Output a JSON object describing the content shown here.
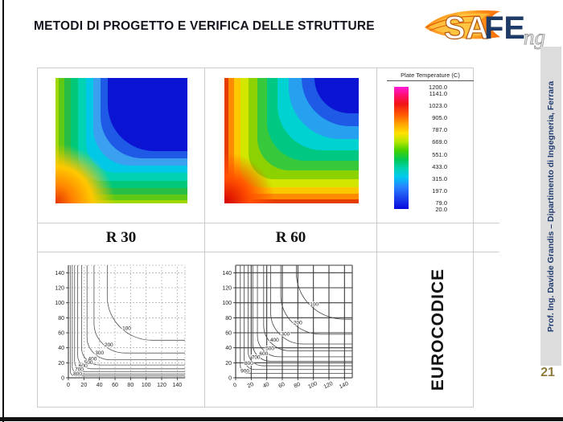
{
  "slide": {
    "title": "METODI DI PROGETTO E VERIFICA DELLE STRUTTURE",
    "page_number": "21",
    "sidebar_text": "Prof. Ing. Davide Grandis – Dipartimento di Ingegneria, Ferrara",
    "logo": {
      "text_sa": "SA",
      "text_fe": "FE",
      "text_ng": "ng"
    }
  },
  "colors": {
    "title_text": "#15151f",
    "logo_navy": "#1e3a66",
    "logo_flame": "#ff7a00",
    "sidebar_bg": "#dcdcdc",
    "sidebar_text": "#1f3a6e",
    "page_number_gold": "#8f7d3f",
    "table_border": "#cccccc"
  },
  "table": {
    "row_labels": [
      "R 30",
      "R 60"
    ],
    "eurocode_label": "EUROCODICE"
  },
  "legend": {
    "title": "Plate Temperature (C)",
    "values": [
      "1200.0",
      "1141.0",
      "1023.0",
      "905.0",
      "787.0",
      "669.0",
      "551.0",
      "433.0",
      "315.0",
      "197.0",
      "79.0",
      "20.0"
    ],
    "value_max": 1200,
    "value_min": 20,
    "gradient_stops": [
      "#ff1ad9 0%",
      "#ff0f6e 7%",
      "#f01414 14%",
      "#ff5a00 23%",
      "#ffa000 30%",
      "#ffe100 38%",
      "#b4e600 45%",
      "#46d200 52%",
      "#00c85a 60%",
      "#00d2b4 67%",
      "#00c8f0 74%",
      "#2882ff 82%",
      "#1e50f0 89%",
      "#0a0adc 100%"
    ]
  },
  "chart_data": [
    {
      "type": "heatmap",
      "name": "R 30 plate temperature map",
      "legend_title": "Plate Temperature (C)",
      "heated_edges": [
        "left",
        "bottom"
      ],
      "bands": [
        {
          "inset": 0,
          "radius": 0,
          "color": "#a0d800"
        },
        {
          "inset": 4,
          "radius": 10,
          "color": "#5fc814"
        },
        {
          "inset": 11,
          "radius": 16,
          "color": "#28be46"
        },
        {
          "inset": 19,
          "radius": 22,
          "color": "#00c878"
        },
        {
          "inset": 28,
          "radius": 30,
          "color": "#00d2b4"
        },
        {
          "inset": 38,
          "radius": 38,
          "color": "#00c8e6"
        },
        {
          "inset": 47,
          "radius": 46,
          "color": "#3ca0f0"
        },
        {
          "inset": 56,
          "radius": 52,
          "color": "#1e5ae6"
        },
        {
          "inset": 65,
          "radius": 58,
          "color": "#0a14d2"
        }
      ],
      "hotspot": {
        "size": 85,
        "stops": [
          "#e63200 0%",
          "#ff8200 18%",
          "#ffc800 38%",
          "rgba(255,220,0,0) 62%"
        ]
      }
    },
    {
      "type": "heatmap",
      "name": "R 60 plate temperature map",
      "legend_title": "Plate Temperature (C)",
      "heated_edges": [
        "left",
        "bottom"
      ],
      "bands": [
        {
          "inset": 0,
          "radius": 0,
          "color": "#e63c00"
        },
        {
          "inset": 5,
          "radius": 10,
          "color": "#ff8c00"
        },
        {
          "inset": 12,
          "radius": 16,
          "color": "#ffc800"
        },
        {
          "inset": 20,
          "radius": 24,
          "color": "#d2e600"
        },
        {
          "inset": 30,
          "radius": 32,
          "color": "#8cd200"
        },
        {
          "inset": 41,
          "radius": 40,
          "color": "#37c83c"
        },
        {
          "inset": 53,
          "radius": 48,
          "color": "#00c882"
        },
        {
          "inset": 66,
          "radius": 56,
          "color": "#00d2d2"
        },
        {
          "inset": 80,
          "radius": 64,
          "color": "#28a0f0"
        },
        {
          "inset": 96,
          "radius": 72,
          "color": "#1e5ae6"
        },
        {
          "inset": 112,
          "radius": 80,
          "color": "#0a14d2"
        }
      ],
      "hotspot": {
        "size": 75,
        "stops": [
          "#d20000 0%",
          "#ff5000 30%",
          "rgba(255,120,0,0) 60%"
        ]
      }
    },
    {
      "type": "line",
      "subtype": "isotherm-contours",
      "name": "Eurocode isotherms R 30",
      "x_range": [
        0,
        150
      ],
      "y_range": [
        0,
        150
      ],
      "ticks": [
        0,
        20,
        40,
        60,
        80,
        100,
        120,
        140
      ],
      "grid": {
        "color": "#9a9a9a",
        "dash": "2,2",
        "width": 0.6
      },
      "contour_color": "#555555",
      "xtick_rotate": 0,
      "contours": [
        {
          "label": "100",
          "d": 50,
          "r": 58,
          "lx": 75,
          "ly": 64
        },
        {
          "label": "200",
          "d": 33,
          "r": 40,
          "lx": 52,
          "ly": 42
        },
        {
          "label": "300",
          "d": 24,
          "r": 30,
          "lx": 40,
          "ly": 31
        },
        {
          "label": "400",
          "d": 17,
          "r": 23,
          "lx": 31,
          "ly": 23
        },
        {
          "label": "500",
          "d": 12,
          "r": 18,
          "lx": 26,
          "ly": 18
        },
        {
          "label": "600",
          "d": 8,
          "r": 14,
          "lx": 19,
          "ly": 14
        },
        {
          "label": "700",
          "d": 5,
          "r": 10,
          "lx": 14,
          "ly": 9
        },
        {
          "label": "800",
          "d": 2.5,
          "r": 6,
          "lx": 12,
          "ly": 3
        }
      ]
    },
    {
      "type": "line",
      "subtype": "isotherm-contours",
      "name": "Eurocode isotherms R 60",
      "x_range": [
        0,
        150
      ],
      "y_range": [
        0,
        150
      ],
      "ticks": [
        0,
        20,
        40,
        60,
        80,
        100,
        120,
        140
      ],
      "grid": {
        "color": "#3c3c3c",
        "dash": "",
        "width": 1.1
      },
      "contour_color": "#444444",
      "xtick_rotate": -25,
      "contours": [
        {
          "label": "100",
          "d": 78,
          "r": 62,
          "lx": 101,
          "ly": 96
        },
        {
          "label": "200",
          "d": 58,
          "r": 52,
          "lx": 80,
          "ly": 71
        },
        {
          "label": "300",
          "d": 45,
          "r": 42,
          "lx": 64,
          "ly": 56
        },
        {
          "label": "400",
          "d": 36,
          "r": 34,
          "lx": 50,
          "ly": 48
        },
        {
          "label": "500",
          "d": 28,
          "r": 28,
          "lx": 44,
          "ly": 37
        },
        {
          "label": "600",
          "d": 22,
          "r": 23,
          "lx": 36,
          "ly": 30
        },
        {
          "label": "700",
          "d": 16,
          "r": 19,
          "lx": 26,
          "ly": 25
        },
        {
          "label": "800",
          "d": 11,
          "r": 14,
          "lx": 17,
          "ly": 17
        },
        {
          "label": "900",
          "d": 6,
          "r": 10,
          "lx": 12,
          "ly": 7
        }
      ]
    }
  ]
}
